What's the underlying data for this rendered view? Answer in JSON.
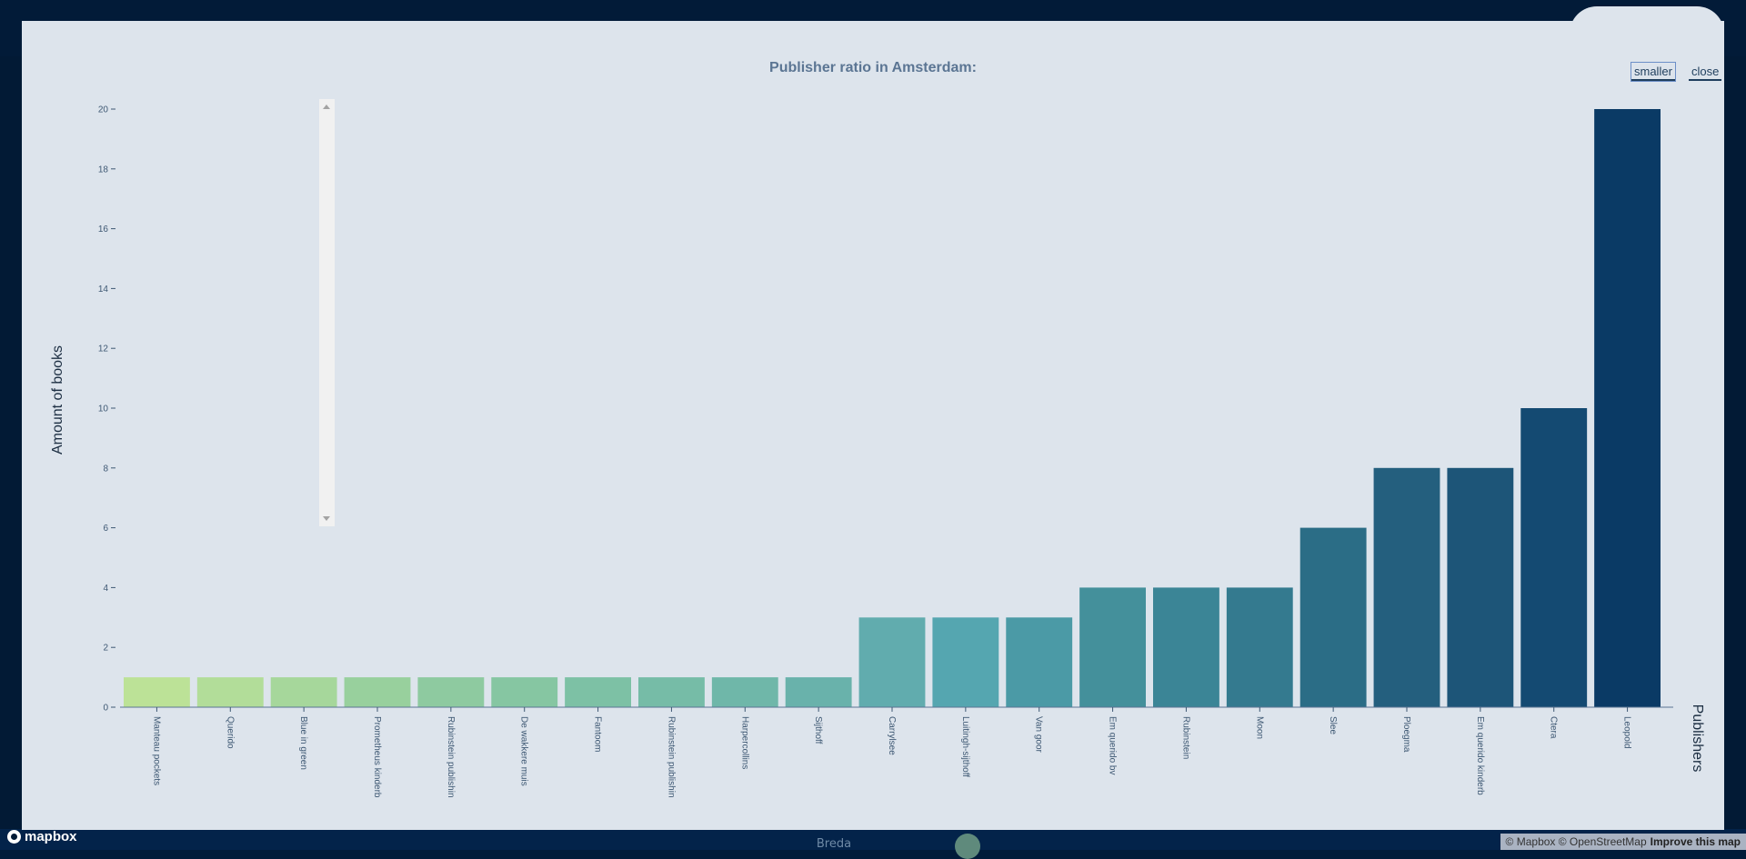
{
  "panel": {
    "smaller_label": "smaller",
    "close_label": "close"
  },
  "map": {
    "city_label": "Breda",
    "attribution": "© Mapbox © OpenStreetMap",
    "improve_label": "Improve this map",
    "logo_label": "mapbox"
  },
  "chart_data": {
    "type": "bar",
    "title": "Publisher ratio in Amsterdam:",
    "xlabel": "Publishers",
    "ylabel": "Amount of books",
    "ylim": [
      0,
      20
    ],
    "yticks": [
      0,
      2,
      4,
      6,
      8,
      10,
      12,
      14,
      16,
      18,
      20
    ],
    "grid": false,
    "categories": [
      "Manteau pockets",
      "Querido",
      "Blue in green",
      "Prometheus kinderb",
      "Rubinstein publishin",
      "De wakkere muis",
      "Fantoom",
      "Rubinstein publishin",
      "Harpercollins",
      "Sijthoff",
      "Carrylsee",
      "Luitingh-sijthoff",
      "Van goor",
      "Em querido bv",
      "Rubinstein",
      "Moon",
      "Slee",
      "Ploegma",
      "Em querido kinderb",
      "Ctera",
      "Leopold"
    ],
    "values": [
      1,
      1,
      1,
      1,
      1,
      1,
      1,
      1,
      1,
      1,
      3,
      3,
      3,
      4,
      4,
      4,
      6,
      8,
      8,
      10,
      20
    ],
    "colors": [
      "#bce297",
      "#b2dd99",
      "#a6d79b",
      "#98d09d",
      "#8ecaa0",
      "#86c6a2",
      "#7dc1a5",
      "#76bca7",
      "#6fb7a9",
      "#69b2ab",
      "#61acae",
      "#55a6b0",
      "#4b9aa6",
      "#44909b",
      "#3b8596",
      "#347a8f",
      "#2b6d86",
      "#245f7e",
      "#1d5578",
      "#144a72",
      "#0a3a65"
    ]
  }
}
